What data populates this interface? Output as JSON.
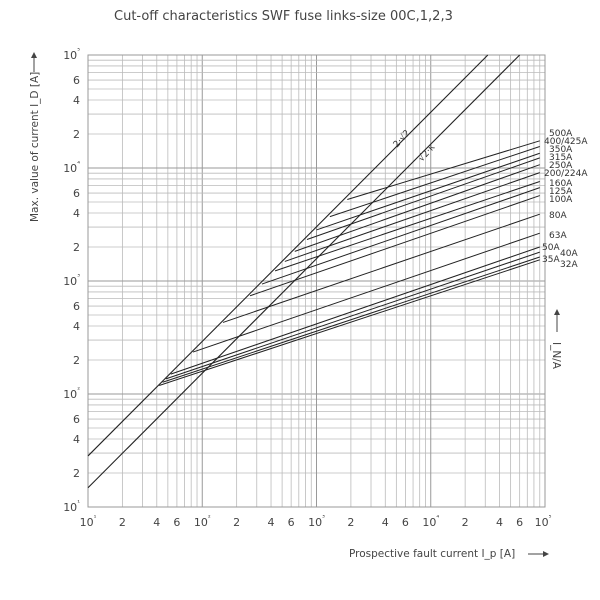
{
  "chart_data": {
    "type": "line",
    "title": "Cut-off characteristics SWF fuse links-size 00C,1,2,3",
    "xlabel": "Prospective fault current I_p [A]",
    "ylabel": "Max. value of current I_D [A]",
    "right_label": "I_N/A",
    "x_scale": "log",
    "y_scale": "log",
    "xlim": [
      10,
      100000
    ],
    "ylim": [
      10,
      100000
    ],
    "grid": true,
    "x_ticks": [
      "10¹",
      "2",
      "4",
      "6",
      "10²",
      "2",
      "4",
      "6",
      "10³",
      "2",
      "4",
      "6",
      "10⁴",
      "2",
      "4",
      "6",
      "10⁵"
    ],
    "y_ticks": [
      "10¹",
      "2",
      "4",
      "6",
      "10²",
      "2",
      "4",
      "6",
      "10³",
      "2",
      "4",
      "6",
      "10⁴",
      "2",
      "4",
      "6",
      "10⁵"
    ],
    "tick_values": [
      10,
      20,
      40,
      60,
      100,
      200,
      400,
      600,
      1000,
      2000,
      4000,
      6000,
      10000,
      20000,
      40000,
      60000,
      100000
    ],
    "reference_lines": [
      {
        "name": "2·√2",
        "x": [
          10,
          31600
        ],
        "y": [
          28.3,
          100000
        ]
      },
      {
        "name": "√2·κ",
        "x": [
          10,
          60000
        ],
        "y": [
          14.8,
          100000
        ]
      }
    ],
    "series": [
      {
        "name": "500A",
        "x": [
          1860,
          90000
        ],
        "y": [
          5260,
          17400
        ]
      },
      {
        "name": "400/425A",
        "x": [
          1310,
          90000
        ],
        "y": [
          3710,
          15500
        ]
      },
      {
        "name": "350A",
        "x": [
          1000,
          90000
        ],
        "y": [
          2830,
          13500
        ]
      },
      {
        "name": "315A",
        "x": [
          825,
          90000
        ],
        "y": [
          2330,
          12300
        ]
      },
      {
        "name": "250A",
        "x": [
          645,
          90000
        ],
        "y": [
          1830,
          10700
        ]
      },
      {
        "name": "200/224A",
        "x": [
          528,
          90000
        ],
        "y": [
          1490,
          9100
        ]
      },
      {
        "name": "160A",
        "x": [
          434,
          90000
        ],
        "y": [
          1230,
          7600
        ]
      },
      {
        "name": "125A",
        "x": [
          333,
          90000
        ],
        "y": [
          940,
          6700
        ]
      },
      {
        "name": "100A",
        "x": [
          262,
          90000
        ],
        "y": [
          740,
          5700
        ]
      },
      {
        "name": "80A",
        "x": [
          152,
          90000
        ],
        "y": [
          430,
          3900
        ]
      },
      {
        "name": "63A",
        "x": [
          83,
          90000
        ],
        "y": [
          235,
          2650
        ]
      },
      {
        "name": "50A",
        "x": [
          53,
          90000
        ],
        "y": [
          150,
          2000
        ]
      },
      {
        "name": "40A",
        "x": [
          48,
          90000
        ],
        "y": [
          136,
          1800
        ]
      },
      {
        "name": "35A",
        "x": [
          45,
          90000
        ],
        "y": [
          127,
          1630
        ]
      },
      {
        "name": "32A",
        "x": [
          42,
          90000
        ],
        "y": [
          119,
          1540
        ]
      }
    ]
  }
}
